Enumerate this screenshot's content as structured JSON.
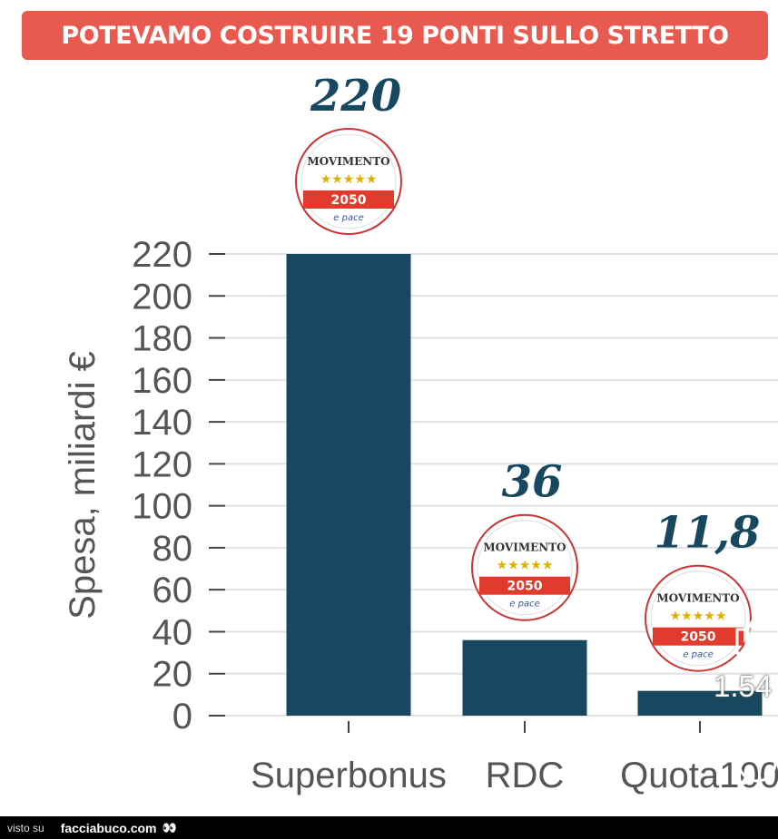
{
  "banner": {
    "text": "POTEVAMO COSTRUIRE 19 PONTI SULLO STRETTO"
  },
  "colors": {
    "banner": "#e8594f",
    "bar": "#17485f",
    "value_label": "#17485f",
    "grid": "#e2e2e2"
  },
  "logo": {
    "name": "MOVIMENTO",
    "stars": "★★★★★",
    "year": "2050",
    "tagline": "e pace"
  },
  "chart_data": {
    "type": "bar",
    "categories": [
      "Superbonus",
      "RDC",
      "Quota100"
    ],
    "values": [
      220,
      36,
      11.8
    ],
    "value_labels": [
      "220",
      "36",
      "11,8"
    ],
    "title": "",
    "xlabel": "",
    "ylabel": "Spesa, miliardi €",
    "ylim": [
      0,
      220
    ],
    "yticks": [
      0,
      20,
      40,
      60,
      80,
      100,
      120,
      140,
      160,
      180,
      200,
      220
    ],
    "grid": true,
    "legend": "none"
  },
  "overlay": {
    "like_count": "1.54",
    "like_icon": "thumbs-up-icon",
    "comment_icon": "comment-icon"
  },
  "footer": {
    "visto": "visto su",
    "site": "facciabuco.com",
    "eyes": "👀"
  }
}
